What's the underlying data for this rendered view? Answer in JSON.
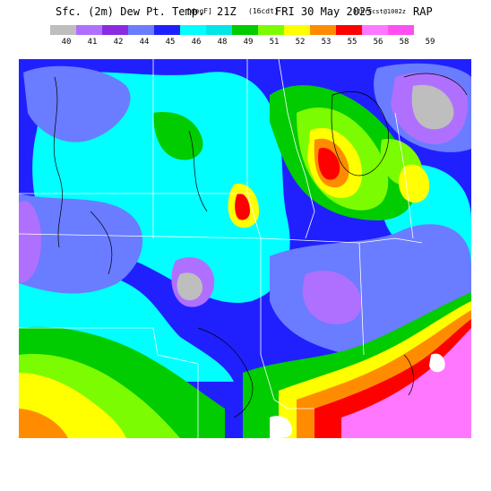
{
  "title": {
    "main": "Sfc. (2m) Dew Pt. Temp.",
    "unit": "[degF]",
    "time": "21Z",
    "zone": "(16cdt)",
    "day": "FRI 30 May 2025",
    "forecast": "12hrFcst@1002z",
    "model": "RAP"
  },
  "legend": {
    "levels": [
      "40",
      "41",
      "42",
      "44",
      "45",
      "46",
      "48",
      "49",
      "51",
      "52",
      "53",
      "55",
      "56",
      "58",
      "59"
    ],
    "colors": [
      "#bebebe",
      "#b070ff",
      "#8a2be2",
      "#6a7cff",
      "#2020ff",
      "#00ffff",
      "#00e6e6",
      "#00cc00",
      "#7cfc00",
      "#ffff00",
      "#ff8c00",
      "#ff0000",
      "#ff77ff",
      "#ff4ff0"
    ]
  },
  "map": {
    "colors": {
      "blue": "#2020ff",
      "periwinkle": "#6a7cff",
      "purple": "#b070ff",
      "gray": "#bebebe",
      "cyan": "#00ffff",
      "teal": "#00e6e6",
      "green": "#00cc00",
      "lime": "#7cfc00",
      "yellow": "#ffff00",
      "orange": "#ff8c00",
      "red": "#ff0000",
      "pink": "#ff77ff",
      "white": "#ffffff"
    }
  }
}
